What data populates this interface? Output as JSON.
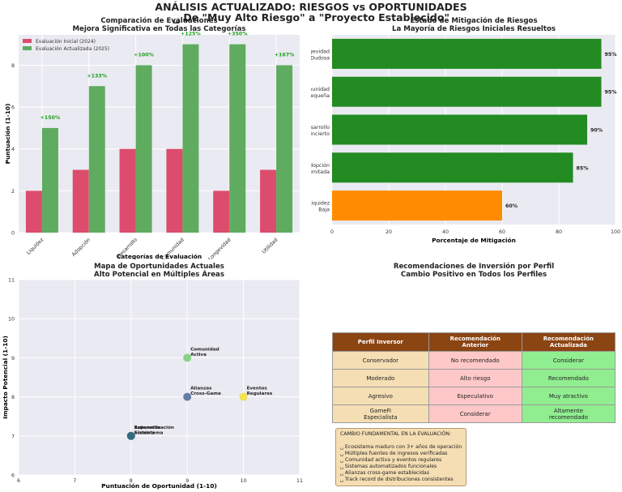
{
  "page": {
    "title_line1": "ANÁLISIS ACTUALIZADO: RIESGOS vs OPORTUNIDADES",
    "title_line2": "␣ De \"Muy Alto Riesgo\" a \"Proyecto Establecido\""
  },
  "chart_data": [
    {
      "type": "bar",
      "title": "Comparación de Evaluaciones",
      "subtitle": "Mejora Significativa en Todas las Categorías",
      "xlabel": "Categorías de Evaluación",
      "ylabel": "Puntuación (1-10)",
      "ylim": [
        0,
        9.45
      ],
      "yticks": [
        "0",
        "2",
        "4",
        "6",
        "8"
      ],
      "categories": [
        "Liquidez",
        "Adopción",
        "Desarrollo",
        "Comunidad",
        "Longevidad",
        "Utilidad"
      ],
      "series": [
        {
          "name": "Evaluación Inicial (2024)",
          "color": "#dc4c6c",
          "values": [
            2,
            3,
            4,
            4,
            2,
            3
          ]
        },
        {
          "name": "Evaluación Actualizada (2025)",
          "color": "#5fab5f",
          "values": [
            5,
            7,
            8,
            9,
            9,
            8
          ]
        }
      ],
      "annotations": [
        "+150%",
        "+133%",
        "+100%",
        "+125%",
        "+350%",
        "+167%"
      ],
      "annotation_color": "#1e9e1e",
      "legend": "top-left",
      "grid": true
    },
    {
      "type": "bar",
      "orientation": "horizontal",
      "title": "Estado de Mitigación de Riesgos",
      "subtitle": "La Mayoría de Riesgos Iniciales Resueltos",
      "xlabel": "Porcentaje de Mitigación",
      "ylabel": "",
      "xlim": [
        0,
        100
      ],
      "xticks": [
        "0",
        "20",
        "40",
        "60",
        "80",
        "100"
      ],
      "categories": [
        [
          "Longevidad",
          "Dudosa"
        ],
        [
          "Comunidad",
          "Pequeña"
        ],
        [
          "Desarrollo",
          "Incierto"
        ],
        [
          "Adopción",
          "Limitada"
        ],
        [
          "Liquidez",
          "Baja"
        ]
      ],
      "values": [
        95,
        95,
        90,
        85,
        60
      ],
      "value_labels": [
        "95%",
        "95%",
        "90%",
        "85%",
        "60%"
      ],
      "colors": [
        "#228b22",
        "#228b22",
        "#228b22",
        "#228b22",
        "#ff8c00"
      ],
      "grid": true
    },
    {
      "type": "scatter",
      "title": "Mapa de Oportunidades Actuales",
      "subtitle": "Alto Potencial en Múltiples Áreas",
      "xlabel": "Puntuación de Oportunidad (1-10)",
      "ylabel": "Impacto Potencial (1-10)",
      "xlim": [
        6,
        11
      ],
      "ylim": [
        6,
        11
      ],
      "xticks": [
        "6",
        "7",
        "8",
        "9",
        "10",
        "11"
      ],
      "yticks": [
        "6",
        "7",
        "8",
        "9",
        "10",
        "11"
      ],
      "points": [
        {
          "label": [
            "Comunidad",
            "Activa"
          ],
          "x": 9,
          "y": 9,
          "color": "#7ccf78"
        },
        {
          "label": [
            "Alianzas",
            "Cross-Game"
          ],
          "x": 9,
          "y": 8,
          "color": "#5a6f9e"
        },
        {
          "label": [
            "Eventos",
            "Regulares"
          ],
          "x": 10,
          "y": 8,
          "color": "#f0e040"
        },
        {
          "label": [
            "Expansión",
            "Ecosistema"
          ],
          "x": 8,
          "y": 7,
          "color": "#2a8a8a"
        },
        {
          "label": [
            "Automatización",
            "Sistema"
          ],
          "x": 8,
          "y": 7,
          "color": "#37677a"
        }
      ],
      "grid": true
    }
  ],
  "recommendations": {
    "title_line1": "Recomendaciones de Inversión por Perfil",
    "title_line2": "Cambio Positivo en Todos los Perfiles",
    "headers": [
      [
        "Perfil Inversor"
      ],
      [
        "Recomendación",
        "Anterior"
      ],
      [
        "Recomendación",
        "Actualizada"
      ]
    ],
    "rows": [
      [
        [
          "Conservador"
        ],
        [
          "No recomendado"
        ],
        [
          "Considerar"
        ]
      ],
      [
        [
          "Moderado"
        ],
        [
          "Alto riesgo"
        ],
        [
          "Recomendado"
        ]
      ],
      [
        [
          "Agresivo"
        ],
        [
          "Especulativo"
        ],
        [
          "Muy atractivo"
        ]
      ],
      [
        [
          "GameFi",
          "Especialista"
        ],
        [
          "Considerar"
        ],
        [
          "Altamente",
          "recomendado"
        ]
      ]
    ],
    "colors": {
      "header": "#8b4513",
      "profile": "#f5deb3",
      "previous": "#ffc8c8",
      "updated": "#90ee90"
    }
  },
  "note": {
    "title": "CAMBIO FUNDAMENTAL EN LA EVALUACIÓN:",
    "lines": [
      "␣ Ecosistema maduro con 3+ años de operación",
      "␣ Múltiples fuentes de ingresos verificadas",
      "␣ Comunidad activa y eventos regulares",
      "␣ Sistemas automatizados funcionales",
      "␣ Alianzas cross-game establecidas",
      "␣ Track record de distribuciones consistentes"
    ]
  }
}
